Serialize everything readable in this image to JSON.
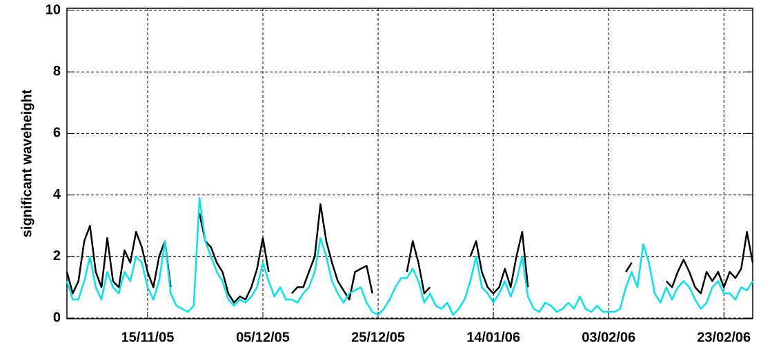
{
  "chart_data": {
    "type": "line",
    "ylabel": "significant waveheight",
    "x": [
      "2005-11-01",
      "2005-11-02",
      "2005-11-03",
      "2005-11-04",
      "2005-11-05",
      "2005-11-06",
      "2005-11-07",
      "2005-11-08",
      "2005-11-09",
      "2005-11-10",
      "2005-11-11",
      "2005-11-12",
      "2005-11-13",
      "2005-11-14",
      "2005-11-15",
      "2005-11-16",
      "2005-11-17",
      "2005-11-18",
      "2005-11-19",
      "2005-11-20",
      "2005-11-21",
      "2005-11-22",
      "2005-11-23",
      "2005-11-24",
      "2005-11-25",
      "2005-11-26",
      "2005-11-27",
      "2005-11-28",
      "2005-11-29",
      "2005-11-30",
      "2005-12-01",
      "2005-12-02",
      "2005-12-03",
      "2005-12-04",
      "2005-12-05",
      "2005-12-06",
      "2005-12-07",
      "2005-12-08",
      "2005-12-09",
      "2005-12-10",
      "2005-12-11",
      "2005-12-12",
      "2005-12-13",
      "2005-12-14",
      "2005-12-15",
      "2005-12-16",
      "2005-12-17",
      "2005-12-18",
      "2005-12-19",
      "2005-12-20",
      "2005-12-21",
      "2005-12-22",
      "2005-12-23",
      "2005-12-24",
      "2005-12-25",
      "2005-12-26",
      "2005-12-27",
      "2005-12-28",
      "2005-12-29",
      "2005-12-30",
      "2005-12-31",
      "2006-01-01",
      "2006-01-02",
      "2006-01-03",
      "2006-01-04",
      "2006-01-05",
      "2006-01-06",
      "2006-01-07",
      "2006-01-08",
      "2006-01-09",
      "2006-01-10",
      "2006-01-11",
      "2006-01-12",
      "2006-01-13",
      "2006-01-14",
      "2006-01-15",
      "2006-01-16",
      "2006-01-17",
      "2006-01-18",
      "2006-01-19",
      "2006-01-20",
      "2006-01-21",
      "2006-01-22",
      "2006-01-23",
      "2006-01-24",
      "2006-01-25",
      "2006-01-26",
      "2006-01-27",
      "2006-01-28",
      "2006-01-29",
      "2006-01-30",
      "2006-01-31",
      "2006-02-01",
      "2006-02-02",
      "2006-02-03",
      "2006-02-04",
      "2006-02-05",
      "2006-02-06",
      "2006-02-07",
      "2006-02-08",
      "2006-02-09",
      "2006-02-10",
      "2006-02-11",
      "2006-02-12",
      "2006-02-13",
      "2006-02-14",
      "2006-02-15",
      "2006-02-16",
      "2006-02-17",
      "2006-02-18",
      "2006-02-19",
      "2006-02-20",
      "2006-02-21",
      "2006-02-22",
      "2006-02-23",
      "2006-02-24",
      "2006-02-25",
      "2006-02-26",
      "2006-02-27",
      "2006-02-28"
    ],
    "series": [
      {
        "color": "#000000",
        "values": [
          1.5,
          0.8,
          1.2,
          2.5,
          3.0,
          1.5,
          1.0,
          2.6,
          1.2,
          1.0,
          2.2,
          1.8,
          2.8,
          2.3,
          1.5,
          1.0,
          2.0,
          2.5,
          1.0,
          null,
          null,
          null,
          null,
          3.4,
          2.5,
          2.3,
          1.8,
          1.5,
          0.8,
          0.5,
          0.7,
          0.6,
          1.0,
          1.6,
          2.6,
          1.5,
          null,
          null,
          null,
          0.8,
          1.0,
          1.0,
          1.5,
          2.0,
          3.7,
          2.5,
          1.8,
          1.2,
          0.9,
          0.6,
          1.5,
          1.6,
          1.7,
          0.8,
          null,
          null,
          null,
          null,
          null,
          1.5,
          2.5,
          1.8,
          0.8,
          1.0,
          null,
          null,
          null,
          null,
          null,
          null,
          2.0,
          2.5,
          1.5,
          1.0,
          0.8,
          1.0,
          1.6,
          1.0,
          2.0,
          2.8,
          1.0,
          null,
          null,
          null,
          null,
          null,
          null,
          null,
          null,
          null,
          null,
          null,
          null,
          null,
          null,
          null,
          null,
          1.5,
          1.8,
          null,
          null,
          null,
          null,
          null,
          1.2,
          1.0,
          1.5,
          1.9,
          1.5,
          1.0,
          0.8,
          1.5,
          1.2,
          1.5,
          1.0,
          1.5,
          1.3,
          1.6,
          2.8,
          1.8
        ]
      },
      {
        "color": "#00e5ee",
        "values": [
          1.2,
          0.6,
          0.6,
          1.2,
          2.0,
          1.0,
          0.6,
          1.5,
          1.0,
          0.8,
          1.5,
          1.2,
          2.0,
          1.8,
          1.0,
          0.6,
          1.2,
          2.5,
          0.8,
          0.4,
          0.3,
          0.2,
          0.4,
          3.9,
          2.5,
          2.0,
          1.5,
          1.2,
          0.6,
          0.4,
          0.6,
          0.5,
          0.7,
          1.0,
          1.8,
          1.2,
          0.7,
          1.0,
          0.6,
          0.6,
          0.5,
          0.8,
          1.0,
          1.5,
          2.6,
          2.0,
          1.2,
          0.8,
          0.5,
          0.8,
          0.9,
          1.0,
          0.5,
          0.2,
          0.1,
          0.3,
          0.6,
          1.0,
          1.3,
          1.3,
          1.6,
          1.2,
          0.5,
          0.8,
          0.4,
          0.3,
          0.5,
          0.1,
          0.3,
          0.6,
          1.2,
          2.0,
          1.0,
          0.8,
          0.5,
          0.8,
          1.2,
          0.7,
          1.2,
          2.0,
          0.7,
          0.3,
          0.2,
          0.5,
          0.4,
          0.2,
          0.3,
          0.5,
          0.3,
          0.7,
          0.3,
          0.2,
          0.4,
          0.2,
          0.2,
          0.2,
          0.3,
          1.0,
          1.5,
          1.0,
          2.4,
          1.8,
          0.8,
          0.5,
          1.0,
          0.6,
          1.0,
          1.2,
          1.0,
          0.6,
          0.3,
          0.5,
          1.0,
          1.2,
          0.8,
          0.8,
          0.6,
          1.0,
          0.9,
          1.2
        ]
      }
    ],
    "xlim": [
      "2005-11-01",
      "2006-02-28"
    ],
    "xticks": [
      {
        "value": "2005-11-15",
        "label": "15/11/05"
      },
      {
        "value": "2005-12-05",
        "label": "05/12/05"
      },
      {
        "value": "2005-12-25",
        "label": "25/12/05"
      },
      {
        "value": "2006-01-14",
        "label": "14/01/06"
      },
      {
        "value": "2006-02-03",
        "label": "03/02/06"
      },
      {
        "value": "2006-02-23",
        "label": "23/02/06"
      }
    ],
    "ylim": [
      0,
      10
    ],
    "yticks": [
      0,
      2,
      4,
      6,
      8,
      10
    ],
    "grid": true
  }
}
